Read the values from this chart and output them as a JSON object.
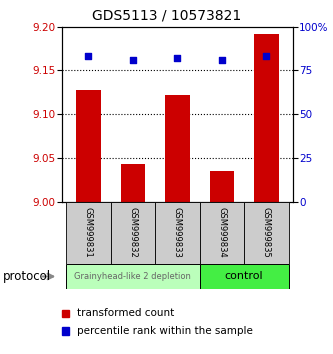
{
  "title": "GDS5113 / 10573821",
  "samples": [
    "GSM999831",
    "GSM999832",
    "GSM999833",
    "GSM999834",
    "GSM999835"
  ],
  "bar_values": [
    9.128,
    9.043,
    9.122,
    9.035,
    9.192
  ],
  "percentile_values": [
    83,
    81,
    82,
    81,
    83
  ],
  "ylim_left": [
    9.0,
    9.2
  ],
  "ylim_right": [
    0,
    100
  ],
  "yticks_left": [
    9.0,
    9.05,
    9.1,
    9.15,
    9.2
  ],
  "yticks_right": [
    0,
    25,
    50,
    75,
    100
  ],
  "bar_color": "#cc0000",
  "percentile_color": "#0000cc",
  "group1_label": "Grainyhead-like 2 depletion",
  "group2_label": "control",
  "group1_color": "#bbffbb",
  "group2_color": "#44ee44",
  "protocol_label": "protocol",
  "legend_bar_label": "transformed count",
  "legend_pct_label": "percentile rank within the sample",
  "tick_bg_color": "#cccccc",
  "bar_width": 0.55
}
